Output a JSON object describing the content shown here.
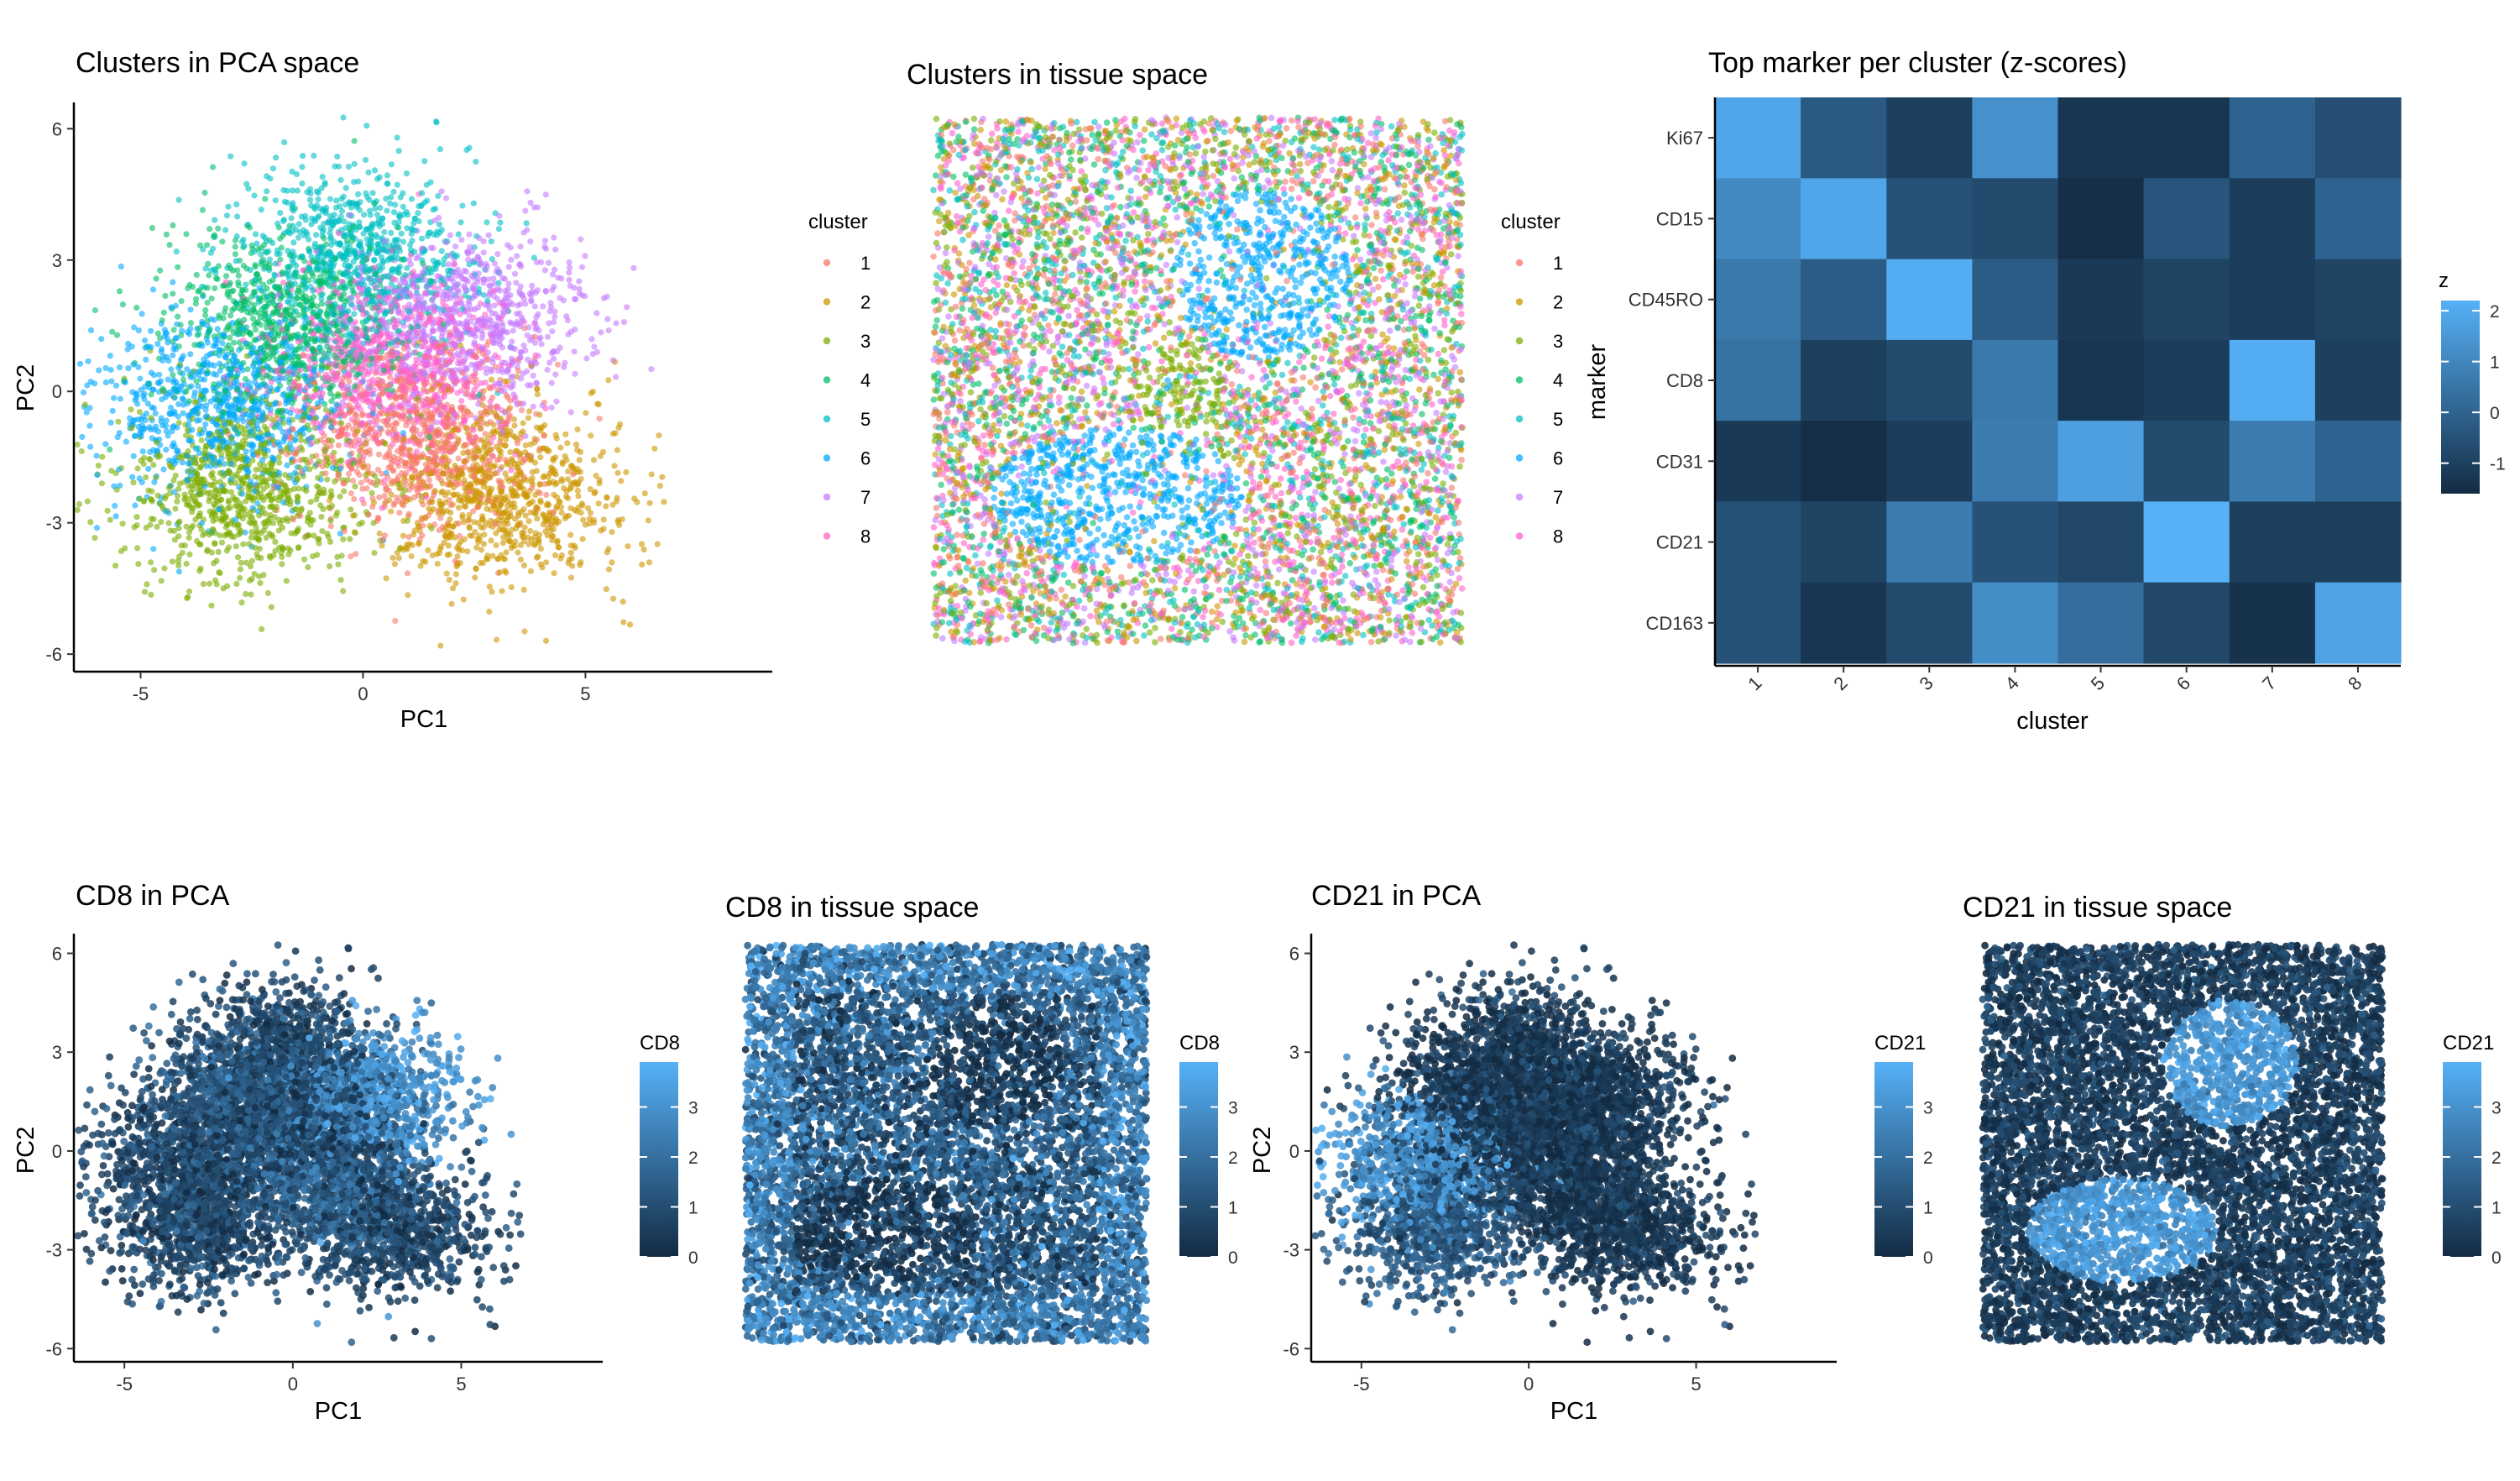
{
  "palette": {
    "clusters": [
      "#F8766D",
      "#CD9600",
      "#7CAE00",
      "#00BE67",
      "#00BFC4",
      "#00A9FF",
      "#C77CFF",
      "#FF61CC"
    ],
    "low": "#132B43",
    "high": "#56B1F7"
  },
  "chart_data": [
    {
      "id": "pca_clusters",
      "type": "scatter",
      "title": "Clusters in PCA space",
      "xlabel": "PC1",
      "ylabel": "PC2",
      "xlim": [
        -6.5,
        9.2
      ],
      "ylim": [
        -6.4,
        6.6
      ],
      "xticks": [
        -5,
        0,
        5
      ],
      "yticks": [
        -6,
        -3,
        0,
        3,
        6
      ],
      "legend_title": "cluster",
      "legend_entries": [
        "1",
        "2",
        "3",
        "4",
        "5",
        "6",
        "7",
        "8"
      ],
      "cluster_centers": [
        [
          1.2,
          -1.0
        ],
        [
          3.2,
          -2.3
        ],
        [
          -2.6,
          -2.2
        ],
        [
          -1.8,
          1.6
        ],
        [
          -0.2,
          3.2
        ],
        [
          -3.2,
          -0.4
        ],
        [
          2.3,
          1.6
        ],
        [
          0.6,
          0.5
        ]
      ]
    },
    {
      "id": "tissue_clusters",
      "type": "scatter",
      "title": "Clusters in tissue space",
      "legend_title": "cluster",
      "legend_entries": [
        "1",
        "2",
        "3",
        "4",
        "5",
        "6",
        "7",
        "8"
      ]
    },
    {
      "id": "heatmap",
      "type": "heatmap",
      "title": "Top marker per cluster (z-scores)",
      "xlabel": "cluster",
      "ylabel": "marker",
      "categories": [
        "1",
        "2",
        "3",
        "4",
        "5",
        "6",
        "7",
        "8"
      ],
      "markers": [
        "Ki67",
        "CD15",
        "CD45RO",
        "CD8",
        "CD31",
        "CD21",
        "CD163"
      ],
      "values": [
        [
          1.9,
          -0.3,
          -1.0,
          1.3,
          -1.3,
          -1.3,
          0.0,
          -0.6
        ],
        [
          1.1,
          1.9,
          -0.5,
          -0.7,
          -1.5,
          -0.4,
          -1.1,
          0.0
        ],
        [
          0.6,
          -0.2,
          2.1,
          -0.2,
          -1.2,
          -0.9,
          -1.1,
          -0.9
        ],
        [
          0.4,
          -1.0,
          -0.7,
          0.6,
          -1.3,
          -1.1,
          2.1,
          -1.0
        ],
        [
          -1.2,
          -1.5,
          -1.1,
          0.7,
          1.7,
          -0.7,
          0.7,
          0.0
        ],
        [
          -0.5,
          -0.9,
          0.7,
          -0.5,
          -0.8,
          2.2,
          -1.0,
          -1.0
        ],
        [
          -0.5,
          -1.3,
          -0.7,
          1.2,
          0.3,
          -0.8,
          -1.4,
          1.8
        ]
      ],
      "legend_title": "z",
      "legend_ticks": [
        2,
        1,
        0,
        -1
      ],
      "zlim": [
        -1.6,
        2.2
      ]
    },
    {
      "id": "pca_cd8",
      "type": "scatter",
      "title": "CD8 in PCA",
      "xlabel": "PC1",
      "ylabel": "PC2",
      "xlim": [
        -6.5,
        9.2
      ],
      "ylim": [
        -6.4,
        6.6
      ],
      "xticks": [
        -5,
        0,
        5
      ],
      "yticks": [
        -6,
        -3,
        0,
        3,
        6
      ],
      "legend_title": "CD8",
      "legend_ticks": [
        3,
        2,
        1,
        0
      ],
      "clim": [
        0,
        3.9
      ]
    },
    {
      "id": "tissue_cd8",
      "type": "scatter",
      "title": "CD8 in tissue space",
      "legend_title": "CD8",
      "legend_ticks": [
        3,
        2,
        1,
        0
      ],
      "clim": [
        0,
        3.9
      ]
    },
    {
      "id": "pca_cd21",
      "type": "scatter",
      "title": "CD21 in PCA",
      "xlabel": "PC1",
      "ylabel": "PC2",
      "xlim": [
        -6.5,
        9.2
      ],
      "ylim": [
        -6.4,
        6.6
      ],
      "xticks": [
        -5,
        0,
        5
      ],
      "yticks": [
        -6,
        -3,
        0,
        3,
        6
      ],
      "legend_title": "CD21",
      "legend_ticks": [
        3,
        2,
        1,
        0
      ],
      "clim": [
        0,
        3.9
      ]
    },
    {
      "id": "tissue_cd21",
      "type": "scatter",
      "title": "CD21 in tissue space",
      "legend_title": "CD21",
      "legend_ticks": [
        3,
        2,
        1,
        0
      ],
      "clim": [
        0,
        3.9
      ]
    }
  ]
}
